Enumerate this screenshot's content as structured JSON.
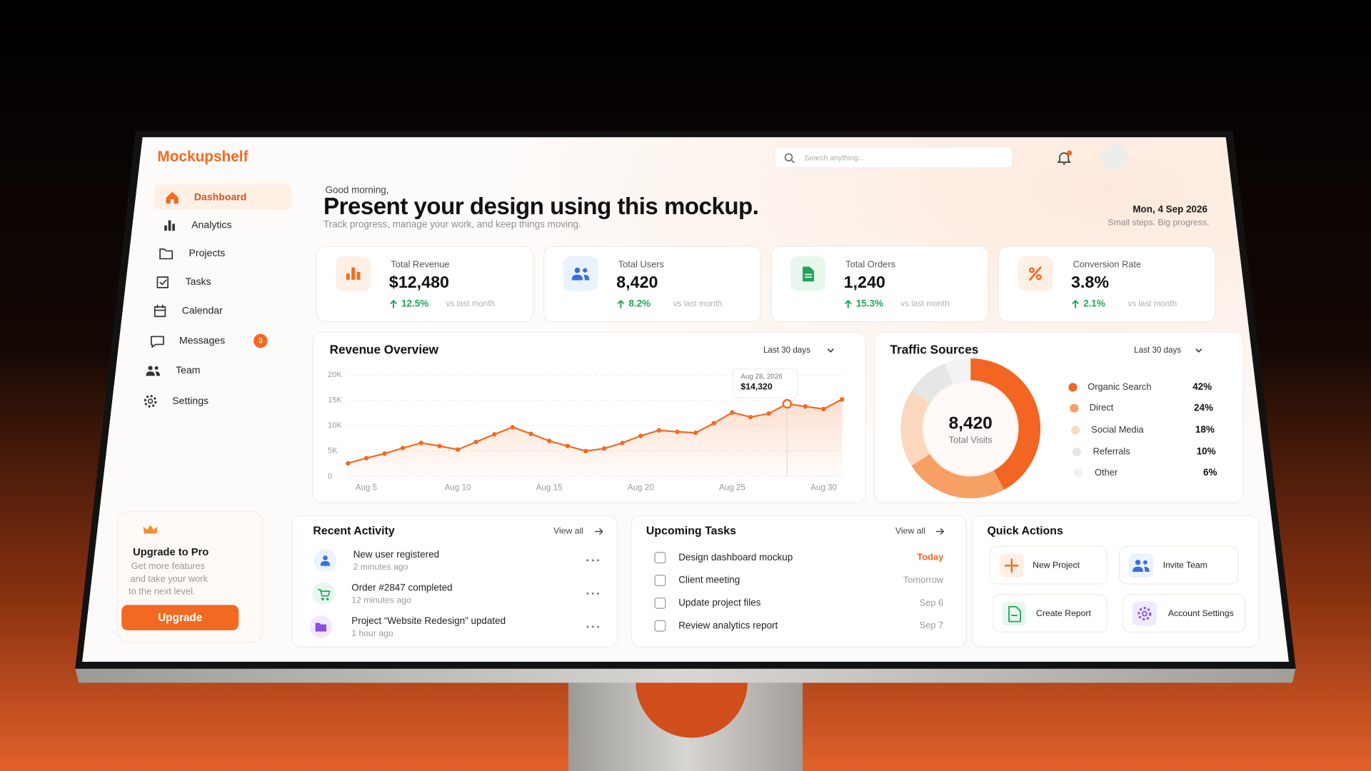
{
  "brand": "Mockupshelf",
  "search_placeholder": "Search anything...",
  "nav": [
    "Dashboard",
    "Analytics",
    "Projects",
    "Tasks",
    "Calendar",
    "Messages",
    "Team",
    "Settings"
  ],
  "messages_badge": 3,
  "header": {
    "greeting": "Good morning,",
    "title": "Present your design using this mockup.",
    "subtitle": "Track progress, manage your work, and keep things moving.",
    "date": "Mon, 4 Sep 2026",
    "tagline": "Small steps. Big progress."
  },
  "stats": [
    {
      "label": "Total Revenue",
      "value": "$12,480",
      "change": "12.5%",
      "note": "vs last month"
    },
    {
      "label": "Total Users",
      "value": "8,420",
      "change": "8.2%",
      "note": "vs last month"
    },
    {
      "label": "Total Orders",
      "value": "1,240",
      "change": "15.3%",
      "note": "vs last month"
    },
    {
      "label": "Conversion Rate",
      "value": "3.8%",
      "change": "2.1%",
      "note": "vs last month"
    }
  ],
  "chart_data": [
    {
      "type": "line",
      "title": "Revenue Overview",
      "filter": "Last 30 days",
      "categories": [
        null,
        "Aug 5",
        null,
        null,
        null,
        null,
        "Aug 10",
        null,
        null,
        null,
        null,
        "Aug 15",
        null,
        null,
        null,
        null,
        "Aug 20",
        null,
        null,
        null,
        null,
        "Aug 25",
        null,
        null,
        null,
        null,
        "Aug 30",
        null
      ],
      "values": [
        2600,
        3600,
        4500,
        5600,
        6600,
        6000,
        5300,
        6800,
        8300,
        9700,
        8400,
        7000,
        6000,
        5000,
        5500,
        6600,
        8000,
        9100,
        8800,
        8600,
        10500,
        12600,
        11700,
        12400,
        14320,
        13800,
        13300,
        15200
      ],
      "value_labels": [
        null,
        null,
        null,
        null,
        null,
        null,
        null,
        null,
        null,
        null,
        null,
        null,
        null,
        null,
        null,
        null,
        null,
        null,
        null,
        null,
        null,
        null,
        null,
        null,
        "$14,320",
        null,
        null,
        null
      ],
      "tooltip_title": "Aug 28, 2026",
      "color": "#f26a21",
      "ylim": [
        0,
        20000
      ],
      "yticks": [
        0,
        {
          "value": 5000,
          "label": "5K"
        },
        {
          "value": 10000,
          "label": "10K"
        },
        {
          "value": 15000,
          "label": "15K"
        },
        {
          "value": 20000,
          "label": "20K"
        }
      ],
      "grid": true
    },
    {
      "type": "pie",
      "donut": true,
      "title": "Traffic Sources",
      "filter": "Last 30 days",
      "center_value": "8,420",
      "center_label": "Total Visits",
      "categories": [
        "Organic Search",
        "Direct",
        "Social Media",
        "Referrals",
        "Other"
      ],
      "values": [
        42,
        24,
        18,
        10,
        6
      ],
      "value_labels": [
        "42%",
        "24%",
        "18%",
        "10%",
        "6%"
      ],
      "colors": [
        "#f26522",
        "#f6a066",
        "#fbd8bd",
        "#e6e6e6",
        "#f2f2f2"
      ]
    }
  ],
  "recent_activity": {
    "title": "Recent Activity",
    "link": "View all",
    "items": [
      {
        "text": "New user registered",
        "time": "2 minutes ago"
      },
      {
        "text": "Order #2847 completed",
        "time": "12 minutes ago"
      },
      {
        "text": "Project “Website Redesign” updated",
        "time": "1 hour ago"
      }
    ]
  },
  "tasks": {
    "title": "Upcoming Tasks",
    "link": "View all",
    "items": [
      {
        "text": "Design dashboard mockup",
        "due": "Today"
      },
      {
        "text": "Client meeting",
        "due": "Tomorrow"
      },
      {
        "text": "Update project files",
        "due": "Sep 6"
      },
      {
        "text": "Review analytics report",
        "due": "Sep 7"
      }
    ]
  },
  "quick_actions": {
    "title": "Quick Actions",
    "items": [
      "New Project",
      "Invite Team",
      "Create Report",
      "Account Settings"
    ]
  },
  "upgrade": {
    "title": "Upgrade to Pro",
    "lines": [
      "Get more features",
      "and take your work",
      "to the next level."
    ],
    "button": "Upgrade"
  }
}
